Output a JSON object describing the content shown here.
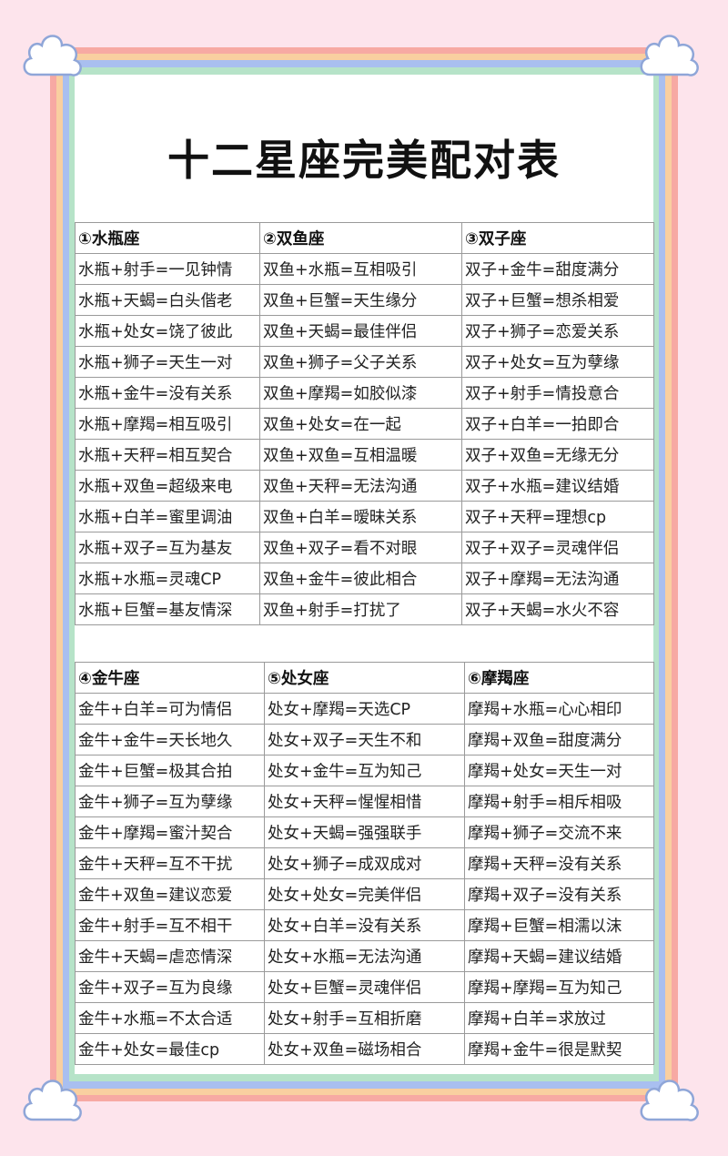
{
  "title": "十二星座完美配对表",
  "colors": {
    "background": "#fde4ec",
    "rainbow": [
      "#f7a9a3",
      "#f9cfa0",
      "#a9bff0",
      "#b6e3c8"
    ],
    "cloud_outline": "#8fa6d8"
  },
  "tables": [
    {
      "columns": [
        {
          "header": "①水瓶座",
          "rows": [
            "水瓶+射手=一见钟情",
            "水瓶+天蝎=白头偕老",
            "水瓶+处女=饶了彼此",
            "水瓶+狮子=天生一对",
            "水瓶+金牛=没有关系",
            "水瓶+摩羯=相互吸引",
            "水瓶+天秤=相互契合",
            "水瓶+双鱼=超级来电",
            "水瓶+白羊=蜜里调油",
            "水瓶+双子=互为基友",
            "水瓶+水瓶=灵魂CP",
            "水瓶+巨蟹=基友情深"
          ]
        },
        {
          "header": "②双鱼座",
          "rows": [
            "双鱼+水瓶=互相吸引",
            "双鱼+巨蟹=天生缘分",
            "双鱼+天蝎=最佳伴侣",
            "双鱼+狮子=父子关系",
            "双鱼+摩羯=如胶似漆",
            "双鱼+处女=在一起",
            "双鱼+双鱼=互相温暖",
            "双鱼+天秤=无法沟通",
            "双鱼+白羊=暧昧关系",
            "双鱼+双子=看不对眼",
            "双鱼+金牛=彼此相合",
            "双鱼+射手=打扰了"
          ]
        },
        {
          "header": "③双子座",
          "rows": [
            "双子+金牛=甜度满分",
            "双子+巨蟹=想杀相爱",
            "双子+狮子=恋爱关系",
            "双子+处女=互为孽缘",
            "双子+射手=情投意合",
            "双子+白羊=一拍即合",
            "双子+双鱼=无缘无分",
            "双子+水瓶=建议结婚",
            "双子+天秤=理想cp",
            "双子+双子=灵魂伴侣",
            "双子+摩羯=无法沟通",
            "双子+天蝎=水火不容"
          ]
        }
      ]
    },
    {
      "columns": [
        {
          "header": "④金牛座",
          "rows": [
            "金牛+白羊=可为情侣",
            "金牛+金牛=天长地久",
            "金牛+巨蟹=极其合拍",
            "金牛+狮子=互为孽缘",
            "金牛+摩羯=蜜汁契合",
            "金牛+天秤=互不干扰",
            "金牛+双鱼=建议恋爱",
            "金牛+射手=互不相干",
            "金牛+天蝎=虐恋情深",
            "金牛+双子=互为良缘",
            "金牛+水瓶=不太合适",
            "金牛+处女=最佳cp"
          ]
        },
        {
          "header": "⑤处女座",
          "rows": [
            "处女+摩羯=天选CP",
            "处女+双子=天生不和",
            "处女+金牛=互为知己",
            "处女+天秤=惺惺相惜",
            "处女+天蝎=强强联手",
            "处女+狮子=成双成对",
            "处女+处女=完美伴侣",
            "处女+白羊=没有关系",
            "处女+水瓶=无法沟通",
            "处女+巨蟹=灵魂伴侣",
            "处女+射手=互相折磨",
            "处女+双鱼=磁场相合"
          ]
        },
        {
          "header": "⑥摩羯座",
          "rows": [
            "摩羯+水瓶=心心相印",
            "摩羯+双鱼=甜度满分",
            "摩羯+处女=天生一对",
            "摩羯+射手=相斥相吸",
            "摩羯+狮子=交流不来",
            "摩羯+天秤=没有关系",
            "摩羯+双子=没有关系",
            "摩羯+巨蟹=相濡以沫",
            "摩羯+天蝎=建议结婚",
            "摩羯+摩羯=互为知己",
            "摩羯+白羊=求放过",
            "摩羯+金牛=很是默契"
          ]
        }
      ]
    }
  ]
}
